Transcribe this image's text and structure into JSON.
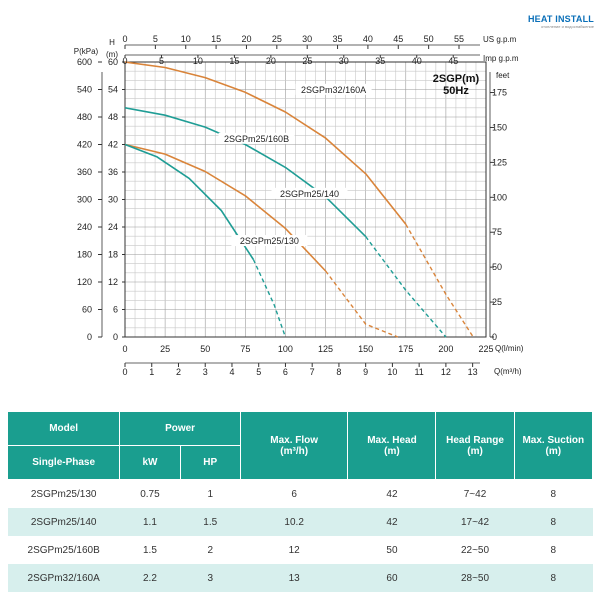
{
  "logo": {
    "main": "HEAT INSTALL",
    "sub": "отопление и водоснабжение"
  },
  "chart_data": {
    "type": "line",
    "title": "2SGP(m)",
    "subtitle": "50Hz",
    "axes": {
      "left_pressure_label": "P(kPa)",
      "left_pressure_ticks": [
        "0",
        "60",
        "120",
        "180",
        "240",
        "300",
        "360",
        "420",
        "480",
        "540",
        "600"
      ],
      "head_label_top": "H",
      "head_label_unit": "(m)",
      "head_ticks": [
        "0",
        "6",
        "12",
        "18",
        "24",
        "30",
        "36",
        "42",
        "48",
        "54",
        "60"
      ],
      "head_range": [
        0,
        60
      ],
      "right_feet_label": "feet",
      "right_feet_ticks": [
        "0",
        "25",
        "50",
        "75",
        "100",
        "125",
        "150",
        "175"
      ],
      "top_usgpm_label": "US  g.p.m",
      "top_usgpm_ticks": [
        "0",
        "5",
        "10",
        "15",
        "20",
        "25",
        "30",
        "35",
        "40",
        "45",
        "50",
        "55"
      ],
      "top_impgpm_label": "Imp g.p.m",
      "top_impgpm_ticks": [
        "0",
        "5",
        "10",
        "15",
        "20",
        "25",
        "30",
        "35",
        "40",
        "45"
      ],
      "bottom_lmin_label": "Q(l/min)",
      "bottom_lmin_ticks": [
        "0",
        "25",
        "50",
        "75",
        "100",
        "125",
        "150",
        "175",
        "200",
        "225"
      ],
      "bottom_m3h_label": "Q(m³/h)",
      "bottom_m3h_ticks": [
        "0",
        "1",
        "2",
        "3",
        "4",
        "5",
        "6",
        "7",
        "8",
        "9",
        "10",
        "11",
        "12",
        "13"
      ],
      "x_range_lmin": [
        0,
        225
      ],
      "grid": true
    },
    "series": [
      {
        "name": "2SGPm32/160A",
        "color": "#d9843a",
        "points": [
          [
            0,
            60
          ],
          [
            25,
            58.8
          ],
          [
            50,
            56.6
          ],
          [
            75,
            53.4
          ],
          [
            100,
            49.1
          ],
          [
            125,
            43.4
          ],
          [
            150,
            35.6
          ],
          [
            175,
            24.6
          ],
          [
            200,
            9.3
          ],
          [
            217,
            0
          ]
        ],
        "dash_from": 175,
        "label_at": [
          130,
          53.5
        ]
      },
      {
        "name": "2SGPm25/160B",
        "color": "#1f9d95",
        "points": [
          [
            0,
            50
          ],
          [
            25,
            48.4
          ],
          [
            50,
            45.8
          ],
          [
            75,
            42
          ],
          [
            100,
            37
          ],
          [
            125,
            30.6
          ],
          [
            150,
            21.9
          ],
          [
            175,
            10.2
          ],
          [
            200,
            0
          ]
        ],
        "dash_from": 150,
        "label_at": [
          82,
          42.8
        ]
      },
      {
        "name": "2SGPm25/140",
        "color": "#d9843a",
        "points": [
          [
            0,
            42
          ],
          [
            25,
            39.9
          ],
          [
            50,
            36.1
          ],
          [
            75,
            30.8
          ],
          [
            100,
            23.7
          ],
          [
            125,
            14.4
          ],
          [
            150,
            2.8
          ],
          [
            170,
            0
          ]
        ],
        "dash_from": 130,
        "label_at": [
          115,
          30.8
        ]
      },
      {
        "name": "2SGPm25/130",
        "color": "#1f9d95",
        "points": [
          [
            0,
            42
          ],
          [
            20,
            39.3
          ],
          [
            40,
            34.6
          ],
          [
            60,
            27.6
          ],
          [
            80,
            16.9
          ],
          [
            93,
            7
          ],
          [
            100,
            0
          ]
        ],
        "dash_from": 90,
        "label_at": [
          90,
          20.5
        ]
      }
    ]
  },
  "table": {
    "headers": {
      "model": "Model",
      "single_phase": "Single-Phase",
      "power": "Power",
      "kw": "kW",
      "hp": "HP",
      "max_flow": "Max. Flow",
      "max_flow_unit": "(m³/h)",
      "max_head": "Max. Head",
      "max_head_unit": "(m)",
      "head_range": "Head Range",
      "head_range_unit": "(m)",
      "max_suction": "Max. Suction",
      "max_suction_unit": "(m)"
    },
    "rows": [
      {
        "model": "2SGPm25/130",
        "kw": "0.75",
        "hp": "1",
        "max_flow": "6",
        "max_head": "42",
        "head_range": "7~42",
        "max_suction": "8"
      },
      {
        "model": "2SGPm25/140",
        "kw": "1.1",
        "hp": "1.5",
        "max_flow": "10.2",
        "max_head": "42",
        "head_range": "17~42",
        "max_suction": "8"
      },
      {
        "model": "2SGPm25/160B",
        "kw": "1.5",
        "hp": "2",
        "max_flow": "12",
        "max_head": "50",
        "head_range": "22~50",
        "max_suction": "8"
      },
      {
        "model": "2SGPm32/160A",
        "kw": "2.2",
        "hp": "3",
        "max_flow": "13",
        "max_head": "60",
        "head_range": "28~50",
        "max_suction": "8"
      }
    ]
  }
}
